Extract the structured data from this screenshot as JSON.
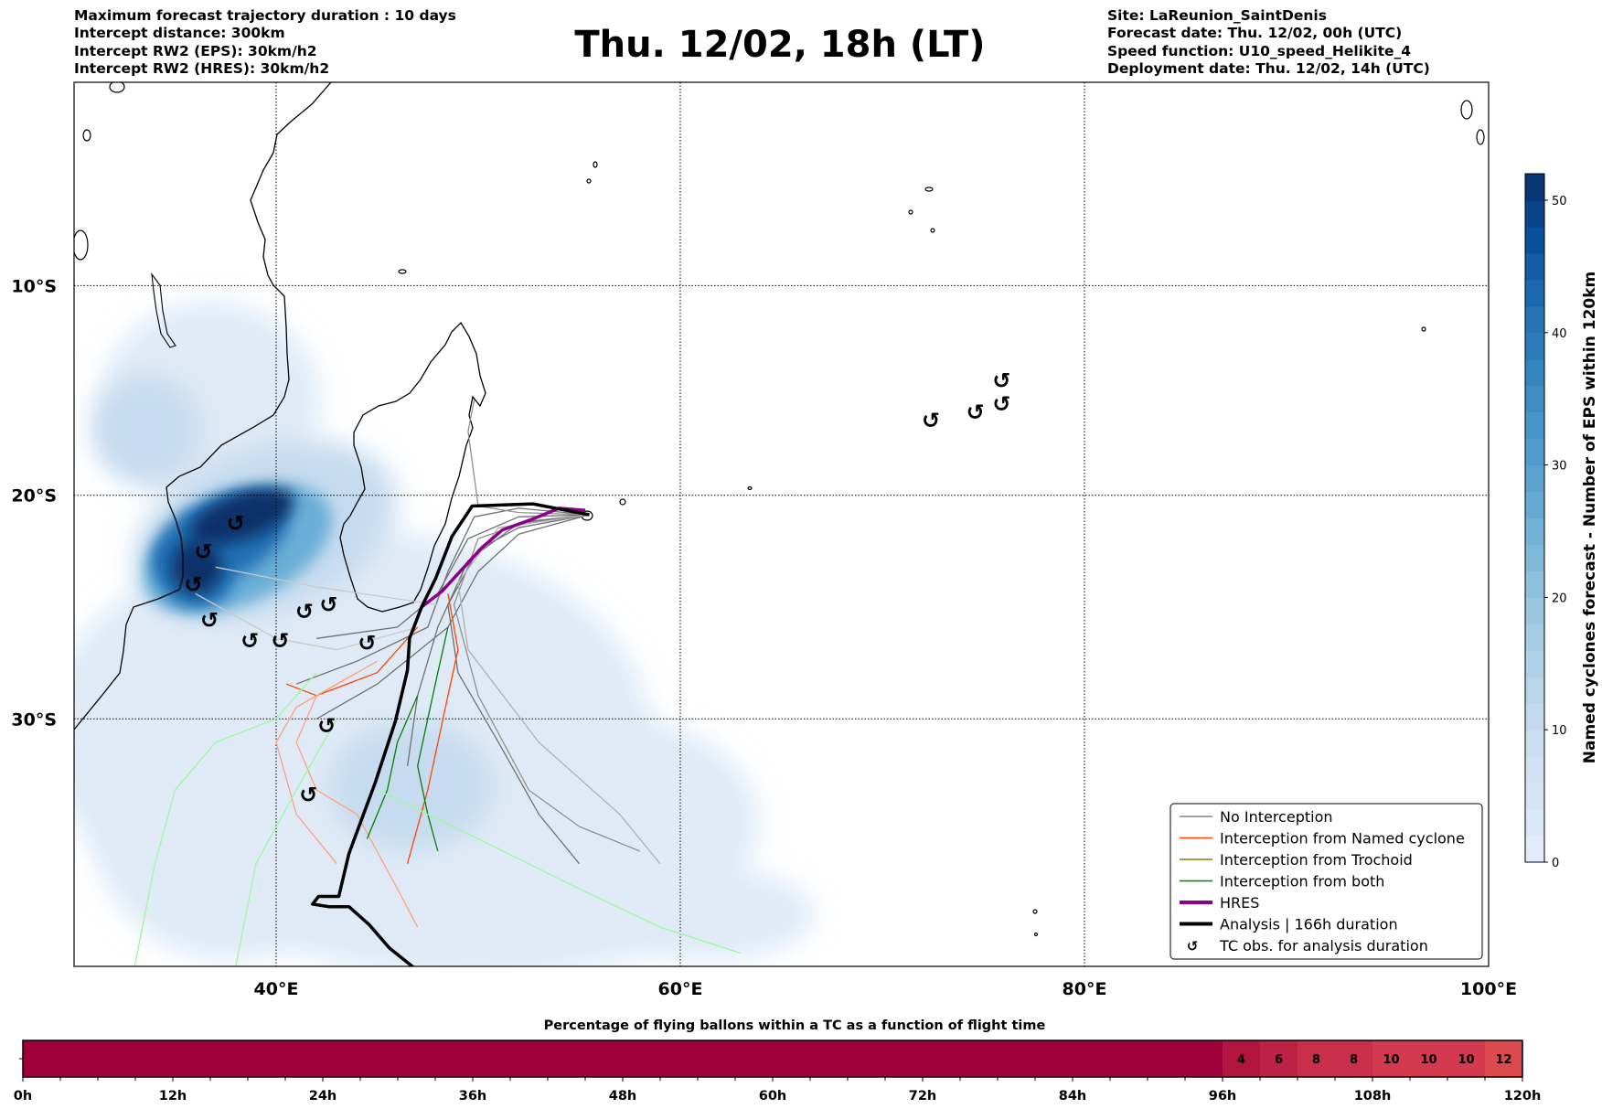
{
  "header": {
    "left": [
      "Maximum forecast trajectory duration : 10 days",
      "Intercept distance: 300km",
      "Intercept RW2 (EPS):  30km/h2",
      "Intercept RW2 (HRES): 30km/h2"
    ],
    "title": "Thu. 12/02, 18h (LT)",
    "right": [
      "Site: LaReunion_SaintDenis",
      "Forecast date: Thu. 12/02, 00h (UTC)",
      "Speed function: U10_speed_Helikite_4",
      "Deployment date: Thu. 12/02, 14h (UTC)"
    ]
  },
  "chart_data": [
    {
      "type": "map",
      "lon_range": [
        30,
        100
      ],
      "lat_range": [
        0,
        -40
      ],
      "lon_ticks": [
        {
          "value": 40,
          "label": "40°E"
        },
        {
          "value": 60,
          "label": "60°E"
        },
        {
          "value": 80,
          "label": "80°E"
        },
        {
          "value": 100,
          "label": "100°E"
        }
      ],
      "lat_ticks": [
        {
          "value": -10,
          "label": "10°S"
        },
        {
          "value": -20,
          "label": "20°S"
        },
        {
          "value": -30,
          "label": "30°S"
        }
      ],
      "grid": true,
      "legend_placement": "lower-right",
      "legend": [
        {
          "label": "No Interception",
          "color": "#808080",
          "kind": "thin"
        },
        {
          "label": "Interception from Named cyclone",
          "color": "#ff4500",
          "kind": "thin"
        },
        {
          "label": "Interception from Trochoid",
          "color": "#808000",
          "kind": "thin"
        },
        {
          "label": "Interception from both",
          "color": "#008000",
          "kind": "thin"
        },
        {
          "label": "HRES",
          "color": "#8b008b",
          "kind": "thick"
        },
        {
          "label": "Analysis | 166h duration",
          "color": "#000000",
          "kind": "thick"
        },
        {
          "label": "TC obs. for analysis duration",
          "color": "#000000",
          "kind": "symbol"
        }
      ],
      "tc_symbol": "↺",
      "tc_obs": [
        [
          72.4,
          -16.5
        ],
        [
          74.6,
          -16.1
        ],
        [
          75.9,
          -15.7
        ],
        [
          75.9,
          -14.6
        ],
        [
          38.0,
          -21.3
        ],
        [
          36.4,
          -22.6
        ],
        [
          35.9,
          -24.1
        ],
        [
          36.7,
          -25.7
        ],
        [
          38.7,
          -26.6
        ],
        [
          40.2,
          -26.6
        ],
        [
          41.4,
          -25.3
        ],
        [
          42.6,
          -25.0
        ],
        [
          44.5,
          -26.7
        ],
        [
          42.5,
          -30.3
        ],
        [
          41.6,
          -33.2
        ]
      ],
      "analysis_track": [
        [
          55.5,
          -20.9
        ],
        [
          52.7,
          -20.4
        ],
        [
          49.7,
          -20.5
        ],
        [
          48.7,
          -21.9
        ],
        [
          47.9,
          -23.8
        ],
        [
          47.2,
          -25.1
        ],
        [
          46.6,
          -26.5
        ],
        [
          46.5,
          -27.9
        ],
        [
          45.9,
          -30.1
        ],
        [
          44.9,
          -32.7
        ],
        [
          43.6,
          -35.6
        ],
        [
          43.1,
          -37.3
        ],
        [
          42.1,
          -37.3
        ],
        [
          41.8,
          -37.6
        ],
        [
          42.6,
          -37.7
        ],
        [
          43.6,
          -37.7
        ],
        [
          44.6,
          -38.4
        ],
        [
          45.6,
          -39.3
        ],
        [
          46.9,
          -40.1
        ]
      ],
      "hres_track": [
        [
          55.3,
          -20.7
        ],
        [
          54.0,
          -20.6
        ],
        [
          52.7,
          -21.1
        ],
        [
          51.2,
          -21.6
        ],
        [
          50.2,
          -22.4
        ],
        [
          49.2,
          -23.4
        ],
        [
          48.2,
          -24.4
        ],
        [
          47.2,
          -25.1
        ]
      ],
      "ensemble_tracks": [
        {
          "category": "none",
          "color": "#707070",
          "points": [
            [
              55.5,
              -20.9
            ],
            [
              52,
              -21
            ],
            [
              49.5,
              -22
            ],
            [
              48,
              -24.5
            ],
            [
              46,
              -26
            ],
            [
              42,
              -26.5
            ]
          ]
        },
        {
          "category": "none",
          "color": "#707070",
          "points": [
            [
              55.5,
              -20.9
            ],
            [
              52,
              -20.6
            ],
            [
              49.8,
              -21
            ],
            [
              48.5,
              -23.5
            ],
            [
              47.5,
              -26
            ],
            [
              44,
              -27.5
            ],
            [
              41,
              -28.5
            ]
          ]
        },
        {
          "category": "none",
          "color": "#707070",
          "points": [
            [
              55.5,
              -20.9
            ],
            [
              52,
              -21.5
            ],
            [
              50,
              -22.5
            ],
            [
              48.5,
              -25
            ],
            [
              49,
              -28
            ],
            [
              51,
              -31
            ],
            [
              53,
              -34
            ],
            [
              55,
              -36
            ]
          ]
        },
        {
          "category": "none",
          "color": "#909090",
          "points": [
            [
              55.5,
              -20.9
            ],
            [
              52.5,
              -21.2
            ],
            [
              50,
              -22
            ],
            [
              48.8,
              -25
            ],
            [
              50,
              -29
            ],
            [
              52.5,
              -33
            ],
            [
              55,
              -34.5
            ],
            [
              58,
              -35.5
            ]
          ]
        },
        {
          "category": "none",
          "color": "#909090",
          "points": [
            [
              55.5,
              -20.9
            ],
            [
              52,
              -20.8
            ],
            [
              50,
              -20.5
            ],
            [
              49.5,
              -17
            ],
            [
              49.8,
              -15.5
            ]
          ]
        },
        {
          "category": "none",
          "color": "#707070",
          "points": [
            [
              55.5,
              -20.9
            ],
            [
              52,
              -21.3
            ],
            [
              49.5,
              -23
            ],
            [
              48,
              -26
            ],
            [
              47,
              -29
            ],
            [
              46.5,
              -32
            ]
          ]
        },
        {
          "category": "none",
          "color": "#707070",
          "points": [
            [
              55.5,
              -20.9
            ],
            [
              52,
              -21.8
            ],
            [
              50,
              -23.5
            ],
            [
              48.5,
              -26
            ],
            [
              45,
              -28.5
            ],
            [
              42,
              -30
            ]
          ]
        },
        {
          "category": "none",
          "color": "#c8c8c8",
          "points": [
            [
              48,
              -25
            ],
            [
              42,
              -24.2
            ],
            [
              37,
              -23.3
            ]
          ]
        },
        {
          "category": "none",
          "color": "#b0b0b0",
          "points": [
            [
              55.5,
              -20.9
            ],
            [
              51,
              -21.5
            ],
            [
              49,
              -24
            ],
            [
              49.5,
              -27
            ],
            [
              53,
              -31
            ],
            [
              57,
              -34
            ],
            [
              59,
              -36
            ]
          ]
        },
        {
          "category": "none",
          "color": "#c8c8c8",
          "points": [
            [
              47,
              -26
            ],
            [
              43,
              -27
            ],
            [
              40,
              -26.5
            ],
            [
              36,
              -24.5
            ]
          ]
        },
        {
          "category": "named",
          "color": "#ff4500",
          "points": [
            [
              48.5,
              -24.5
            ],
            [
              49,
              -27
            ],
            [
              48.5,
              -29
            ],
            [
              47.5,
              -33
            ],
            [
              46.5,
              -36
            ]
          ]
        },
        {
          "category": "named",
          "color": "#ff4500",
          "points": [
            [
              47,
              -26
            ],
            [
              45,
              -28
            ],
            [
              42,
              -29
            ],
            [
              40.5,
              -28.5
            ]
          ]
        },
        {
          "category": "named",
          "color": "#ffa07a",
          "points": [
            [
              45,
              -27.5
            ],
            [
              42,
              -29
            ],
            [
              41,
              -31
            ],
            [
              42,
              -33
            ],
            [
              44,
              -34
            ],
            [
              46,
              -37
            ],
            [
              47,
              -38.5
            ]
          ]
        },
        {
          "category": "named",
          "color": "#ffa07a",
          "points": [
            [
              44,
              -28
            ],
            [
              41,
              -29.5
            ],
            [
              40,
              -31
            ],
            [
              41,
              -34
            ],
            [
              43,
              -36
            ]
          ]
        },
        {
          "category": "both",
          "color": "#008000",
          "points": [
            [
              48.5,
              -26
            ],
            [
              48,
              -28
            ],
            [
              47.5,
              -30
            ],
            [
              47,
              -32
            ],
            [
              47.5,
              -34
            ],
            [
              48,
              -35.5
            ]
          ]
        },
        {
          "category": "both",
          "color": "#008000",
          "points": [
            [
              47,
              -29
            ],
            [
              46,
              -31
            ],
            [
              45.5,
              -33
            ],
            [
              44.5,
              -35
            ]
          ]
        },
        {
          "category": "both",
          "color": "#98fb98",
          "points": [
            [
              42,
              -28
            ],
            [
              40,
              -30
            ],
            [
              37,
              -31
            ],
            [
              35,
              -33
            ],
            [
              34,
              -36
            ],
            [
              33,
              -40
            ]
          ]
        },
        {
          "category": "both",
          "color": "#98fb98",
          "points": [
            [
              43,
              -30
            ],
            [
              41,
              -33
            ],
            [
              39,
              -36
            ],
            [
              38,
              -40
            ]
          ]
        },
        {
          "category": "both",
          "color": "#98fb98",
          "points": [
            [
              45,
              -33
            ],
            [
              50,
              -35
            ],
            [
              55,
              -37
            ],
            [
              59,
              -38.5
            ],
            [
              63,
              -39.5
            ]
          ]
        }
      ],
      "colorbar": {
        "label": "Named cyclones forecast - Number of EPS within 120km",
        "range": [
          0,
          52
        ],
        "ticks": [
          "0",
          "10",
          "20",
          "30",
          "40",
          "50"
        ],
        "colormap": "Blues"
      }
    },
    {
      "type": "heatmap",
      "title": "Percentage of flying ballons within a TC as a function of flight time",
      "x_ticks": [
        "0h",
        "12h",
        "24h",
        "36h",
        "48h",
        "60h",
        "72h",
        "84h",
        "96h",
        "108h",
        "120h"
      ],
      "bin_hours": 3,
      "values": [
        0,
        0,
        0,
        0,
        0,
        0,
        0,
        0,
        0,
        0,
        0,
        0,
        0,
        0,
        0,
        0,
        0,
        0,
        0,
        0,
        0,
        0,
        0,
        0,
        0,
        0,
        0,
        0,
        0,
        0,
        0,
        0,
        4,
        6,
        8,
        8,
        10,
        10,
        10,
        12
      ],
      "labels": [
        "",
        "",
        "",
        "",
        "",
        "",
        "",
        "",
        "",
        "",
        "",
        "",
        "",
        "",
        "",
        "",
        "",
        "",
        "",
        "",
        "",
        "",
        "",
        "",
        "",
        "",
        "",
        "",
        "",
        "",
        "",
        "",
        "4",
        "6",
        "8",
        "8",
        "10",
        "10",
        "10",
        "12"
      ]
    }
  ]
}
